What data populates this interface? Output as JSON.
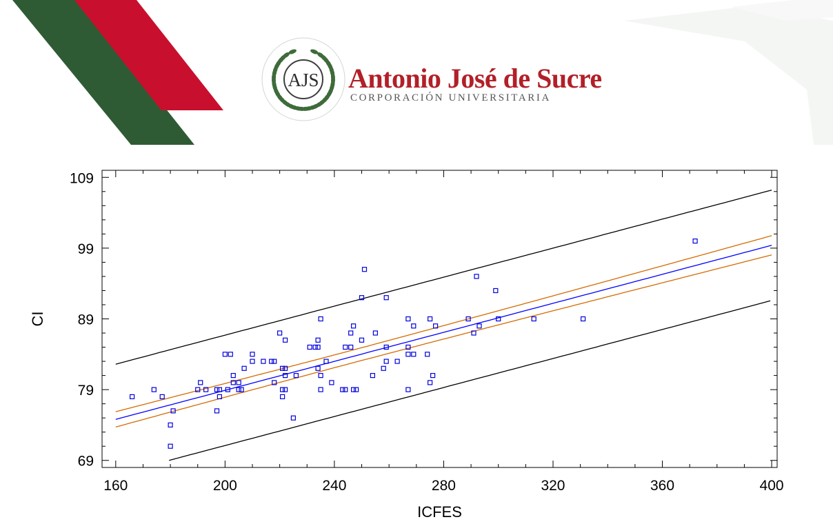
{
  "header": {
    "brand_name": "Antonio José de Sucre",
    "brand_subtitle": "CORPORACIÓN UNIVERSITARIA",
    "logo_monogram": "AJS",
    "colors": {
      "green": "#2e5b34",
      "red": "#c8102e",
      "brand_text": "#b22028"
    }
  },
  "chart_data": {
    "type": "scatter",
    "title": "",
    "xlabel": "ICFES",
    "ylabel": "CI",
    "xlim": [
      155,
      402
    ],
    "ylim": [
      68,
      110
    ],
    "x_ticks": [
      160,
      200,
      240,
      280,
      320,
      360,
      400
    ],
    "y_ticks": [
      69,
      79,
      89,
      99,
      109
    ],
    "grid": false,
    "point_color": "#0000dd",
    "fit_line": {
      "intercept": 58.4,
      "slope": 0.1025,
      "color": "#0000ff"
    },
    "confidence_band": {
      "half_width_center": 0.9,
      "spread": 0.00022,
      "center_x": 244,
      "color": "#d46a00"
    },
    "prediction_band": {
      "half_width": 7.8,
      "color": "#000000"
    },
    "points": [
      [
        166,
        78
      ],
      [
        174,
        79
      ],
      [
        177,
        78
      ],
      [
        180,
        74
      ],
      [
        180,
        71
      ],
      [
        181,
        76
      ],
      [
        190,
        79
      ],
      [
        191,
        80
      ],
      [
        193,
        79
      ],
      [
        197,
        76
      ],
      [
        197,
        79
      ],
      [
        198,
        78
      ],
      [
        198,
        79
      ],
      [
        200,
        84
      ],
      [
        201,
        79
      ],
      [
        202,
        84
      ],
      [
        203,
        80
      ],
      [
        203,
        81
      ],
      [
        205,
        80
      ],
      [
        205,
        79
      ],
      [
        206,
        79
      ],
      [
        207,
        82
      ],
      [
        210,
        83
      ],
      [
        210,
        84
      ],
      [
        214,
        83
      ],
      [
        217,
        83
      ],
      [
        218,
        80
      ],
      [
        218,
        83
      ],
      [
        220,
        87
      ],
      [
        221,
        82
      ],
      [
        221,
        79
      ],
      [
        221,
        78
      ],
      [
        222,
        86
      ],
      [
        222,
        82
      ],
      [
        222,
        81
      ],
      [
        222,
        79
      ],
      [
        225,
        75
      ],
      [
        226,
        81
      ],
      [
        231,
        85
      ],
      [
        233,
        85
      ],
      [
        234,
        82
      ],
      [
        234,
        85
      ],
      [
        234,
        86
      ],
      [
        235,
        89
      ],
      [
        235,
        81
      ],
      [
        235,
        79
      ],
      [
        237,
        83
      ],
      [
        239,
        80
      ],
      [
        243,
        79
      ],
      [
        244,
        85
      ],
      [
        244,
        79
      ],
      [
        246,
        85
      ],
      [
        246,
        87
      ],
      [
        247,
        88
      ],
      [
        247,
        79
      ],
      [
        248,
        79
      ],
      [
        250,
        86
      ],
      [
        250,
        92
      ],
      [
        251,
        96
      ],
      [
        254,
        81
      ],
      [
        255,
        87
      ],
      [
        258,
        82
      ],
      [
        259,
        83
      ],
      [
        259,
        85
      ],
      [
        259,
        92
      ],
      [
        263,
        83
      ],
      [
        267,
        79
      ],
      [
        267,
        84
      ],
      [
        267,
        85
      ],
      [
        267,
        89
      ],
      [
        269,
        84
      ],
      [
        269,
        88
      ],
      [
        274,
        84
      ],
      [
        275,
        89
      ],
      [
        275,
        80
      ],
      [
        276,
        81
      ],
      [
        277,
        88
      ],
      [
        289,
        89
      ],
      [
        291,
        87
      ],
      [
        292,
        95
      ],
      [
        293,
        88
      ],
      [
        299,
        93
      ],
      [
        300,
        89
      ],
      [
        313,
        89
      ],
      [
        331,
        89
      ],
      [
        372,
        100
      ]
    ]
  }
}
